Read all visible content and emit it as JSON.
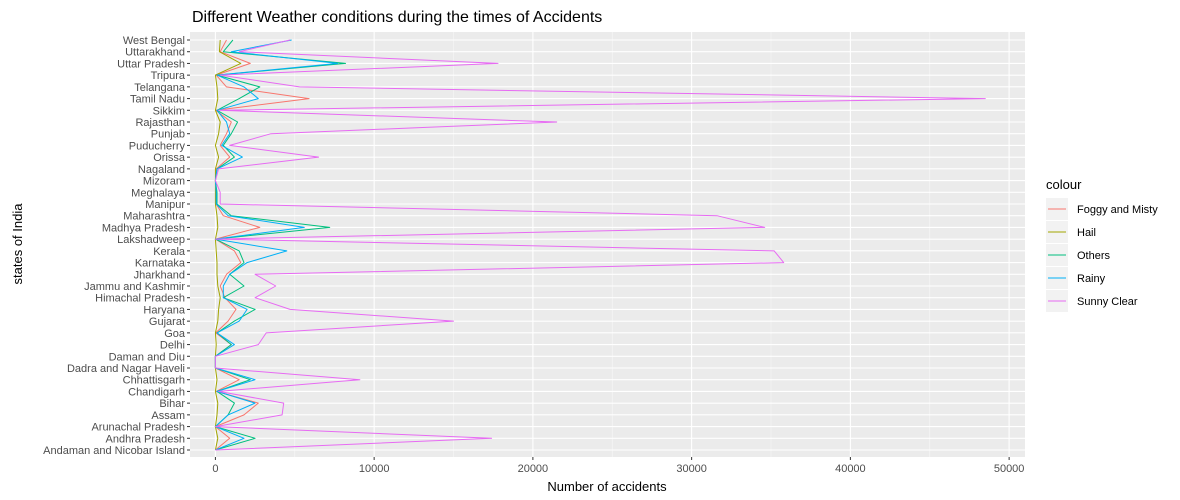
{
  "chart_data": {
    "type": "line",
    "title": "Different Weather conditions during the times of Accidents",
    "xlabel": "Number of accidents",
    "ylabel": "states of India",
    "xlim": [
      -1600,
      51000
    ],
    "x_ticks": [
      0,
      10000,
      20000,
      30000,
      40000,
      50000
    ],
    "grid": true,
    "legend_title": "colour",
    "legend_position": "right",
    "categories": [
      "Andaman and Nicobar Island",
      "Andhra Pradesh",
      "Arunachal Pradesh",
      "Assam",
      "Bihar",
      "Chandigarh",
      "Chhattisgarh",
      "Dadra and Nagar Haveli",
      "Daman and Diu",
      "Delhi",
      "Goa",
      "Gujarat",
      "Haryana",
      "Himachal Pradesh",
      "Jammu and Kashmir",
      "Jharkhand",
      "Karnataka",
      "Kerala",
      "Lakshadweep",
      "Madhya Pradesh",
      "Maharashtra",
      "Manipur",
      "Meghalaya",
      "Mizoram",
      "Nagaland",
      "Orissa",
      "Puducherry",
      "Punjab",
      "Rajasthan",
      "Sikkim",
      "Tamil Nadu",
      "Telangana",
      "Tripura",
      "Uttar Pradesh",
      "Uttarakhand",
      "West Bengal"
    ],
    "series": [
      {
        "name": "Foggy and Misty",
        "color": "#F8766D",
        "values": [
          0,
          900,
          0,
          1800,
          2700,
          50,
          1500,
          0,
          0,
          1000,
          20,
          800,
          1300,
          600,
          300,
          700,
          1600,
          1200,
          0,
          2800,
          500,
          50,
          50,
          0,
          50,
          900,
          300,
          700,
          1000,
          20,
          5900,
          700,
          50,
          2200,
          300,
          700
        ]
      },
      {
        "name": "Hail",
        "color": "#A3A500",
        "values": [
          0,
          150,
          0,
          100,
          150,
          0,
          100,
          0,
          0,
          50,
          0,
          150,
          200,
          300,
          150,
          100,
          100,
          50,
          0,
          150,
          100,
          0,
          0,
          0,
          0,
          200,
          0,
          200,
          300,
          0,
          150,
          100,
          0,
          1600,
          250,
          300
        ]
      },
      {
        "name": "Others",
        "color": "#00BF7D",
        "values": [
          0,
          2500,
          0,
          800,
          1200,
          100,
          2200,
          0,
          0,
          1000,
          100,
          1200,
          2500,
          500,
          1800,
          900,
          1800,
          1500,
          0,
          7200,
          1000,
          100,
          100,
          0,
          100,
          1200,
          500,
          1000,
          1400,
          100,
          1500,
          2800,
          100,
          8200,
          500,
          1100
        ]
      },
      {
        "name": "Rainy",
        "color": "#00B0F6",
        "values": [
          0,
          1800,
          0,
          800,
          2500,
          100,
          2500,
          0,
          0,
          1200,
          100,
          1500,
          2000,
          500,
          500,
          900,
          2000,
          4500,
          0,
          5600,
          800,
          50,
          50,
          0,
          100,
          1700,
          400,
          900,
          700,
          100,
          2700,
          1800,
          100,
          7700,
          1000,
          4800
        ]
      },
      {
        "name": "Sunny Clear",
        "color": "#E76BF3",
        "values": [
          0,
          17400,
          0,
          4200,
          4300,
          200,
          9100,
          0,
          0,
          2700,
          3200,
          15000,
          4700,
          2500,
          3800,
          2500,
          35800,
          35200,
          0,
          34600,
          31600,
          300,
          300,
          0,
          200,
          6500,
          900,
          3500,
          21500,
          200,
          48500,
          5300,
          300,
          17800,
          1500,
          4700
        ]
      }
    ]
  }
}
